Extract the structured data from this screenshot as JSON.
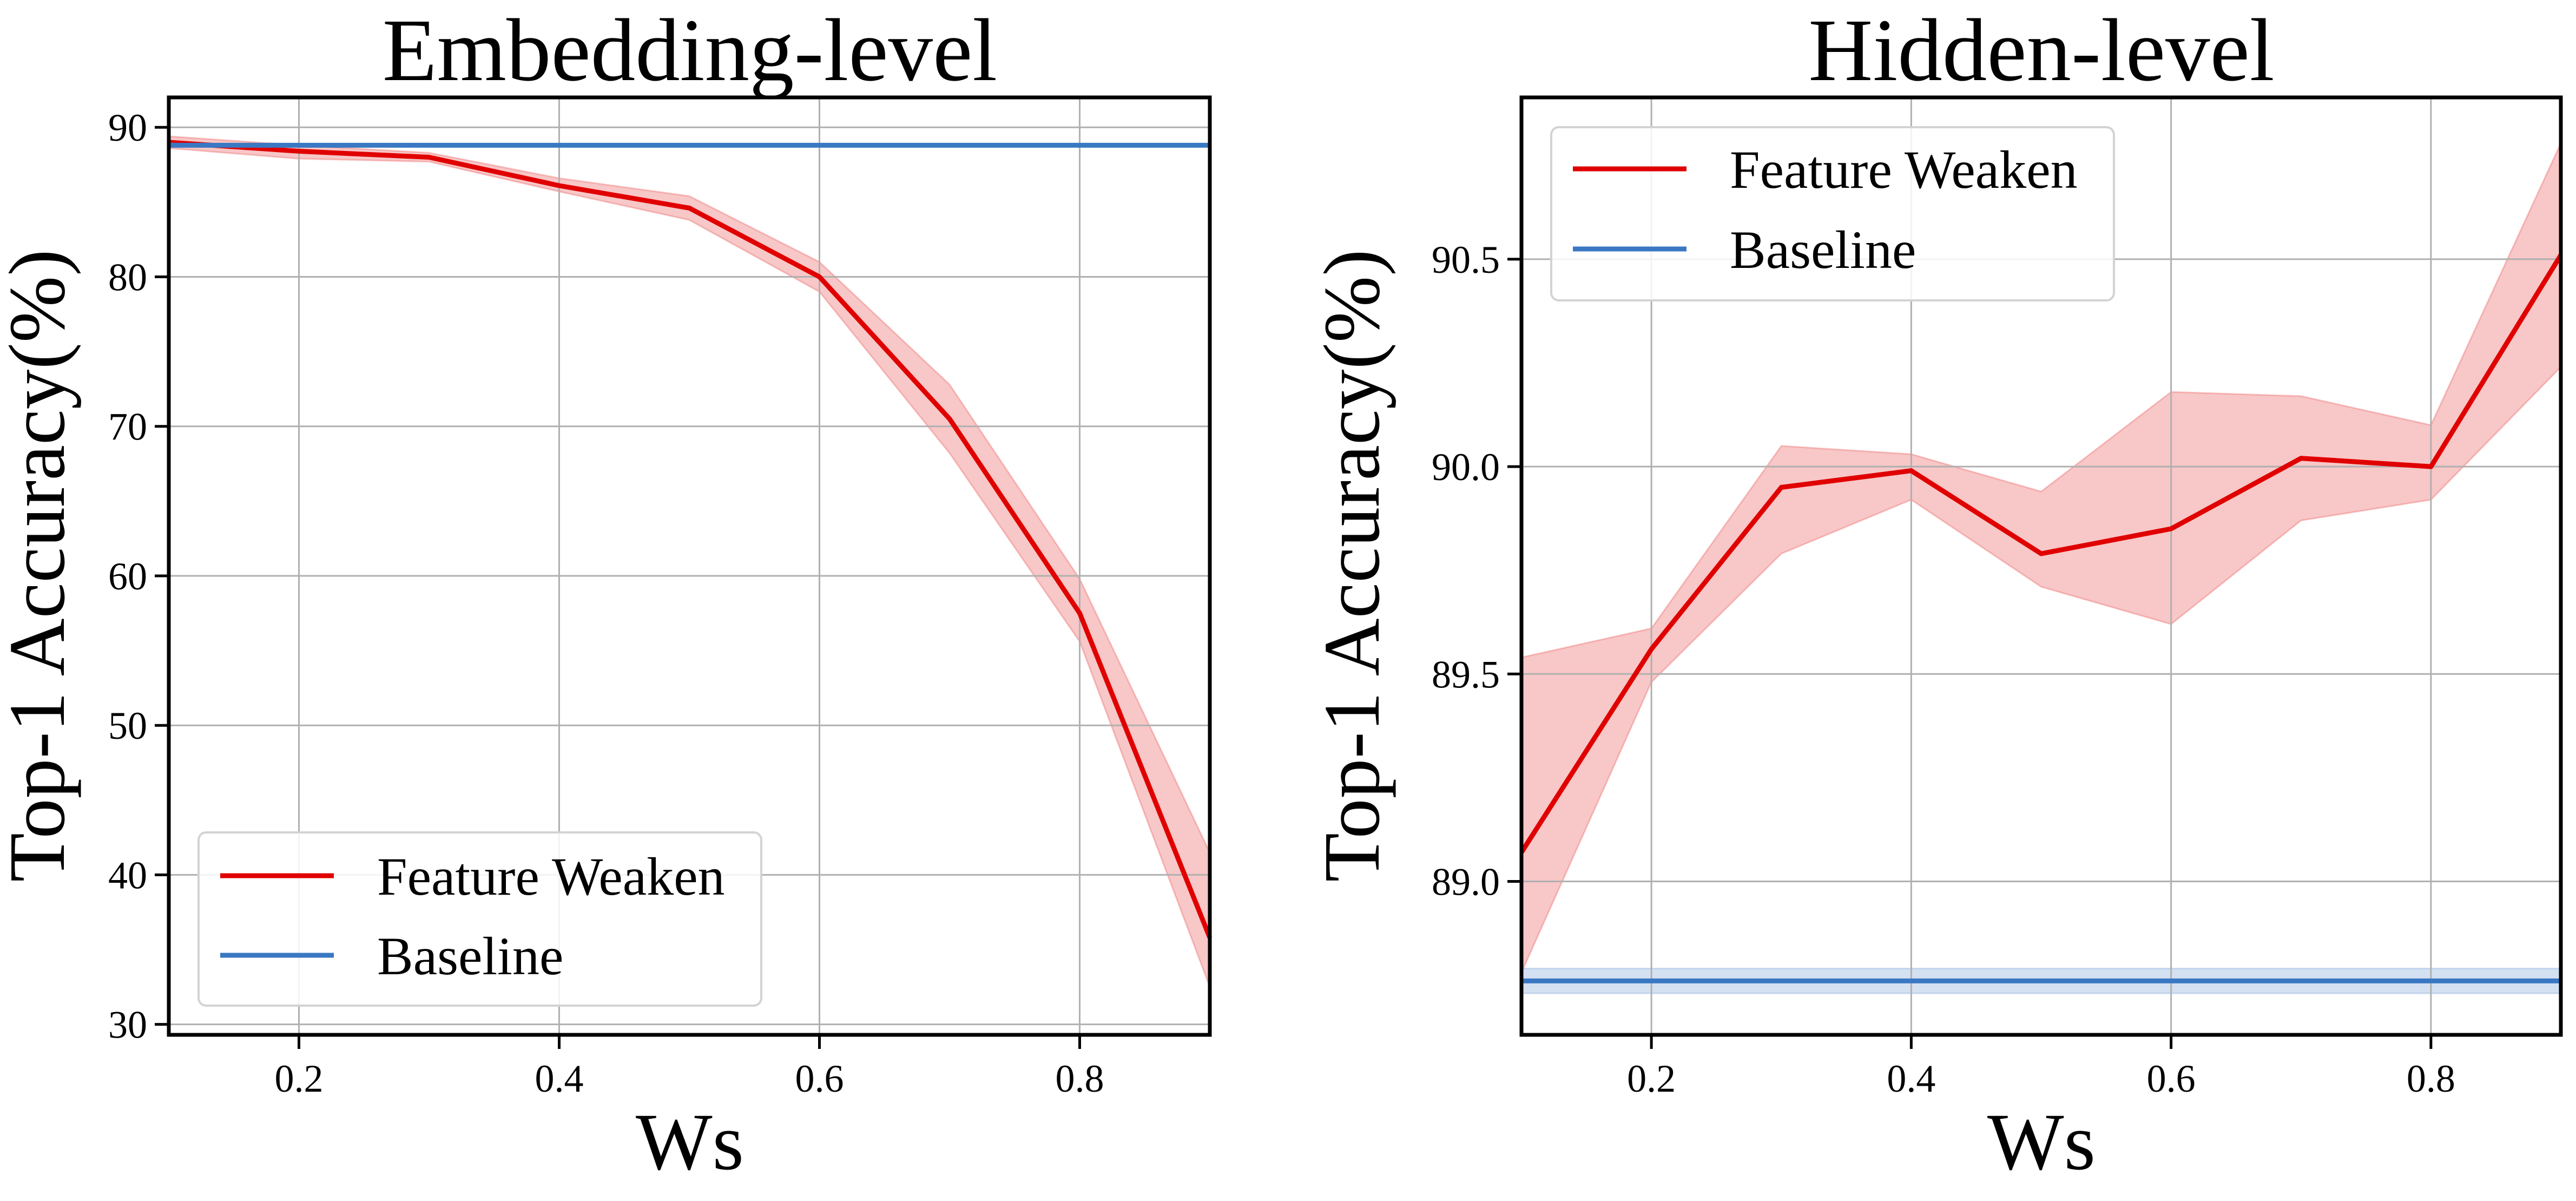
{
  "chart_data": [
    {
      "type": "line",
      "title": "Embedding-level",
      "xlabel": "Ws",
      "ylabel": "Top-1 Accuracy(%)",
      "xlim": [
        0.1,
        0.9
      ],
      "ylim": [
        29.3,
        92.0
      ],
      "xticks": [
        0.2,
        0.4,
        0.6,
        0.8
      ],
      "xtick_labels": [
        "0.2",
        "0.4",
        "0.6",
        "0.8"
      ],
      "yticks": [
        30,
        40,
        50,
        60,
        70,
        80,
        90
      ],
      "ytick_labels": [
        "30",
        "40",
        "50",
        "60",
        "70",
        "80",
        "90"
      ],
      "grid": true,
      "legend_position": "lower-left",
      "series": [
        {
          "name": "Feature Weaken",
          "color": "#e00000",
          "x": [
            0.1,
            0.2,
            0.3,
            0.4,
            0.5,
            0.6,
            0.7,
            0.8,
            0.9
          ],
          "y": [
            89.0,
            88.4,
            88.0,
            86.1,
            84.6,
            80.0,
            70.5,
            57.5,
            35.8
          ],
          "y_lower": [
            88.6,
            87.9,
            87.7,
            85.7,
            83.8,
            79.0,
            68.2,
            55.6,
            32.5
          ],
          "y_upper": [
            89.4,
            88.8,
            88.3,
            86.6,
            85.4,
            81.0,
            72.8,
            59.8,
            41.5
          ]
        },
        {
          "name": "Baseline",
          "color": "#3a78c3",
          "x": [
            0.1,
            0.9
          ],
          "y": [
            88.8,
            88.8
          ]
        }
      ]
    },
    {
      "type": "line",
      "title": "Hidden-level",
      "xlabel": "Ws",
      "ylabel": "Top-1 Accuracy(%)",
      "xlim": [
        0.1,
        0.9
      ],
      "ylim": [
        88.63,
        90.89
      ],
      "xticks": [
        0.2,
        0.4,
        0.6,
        0.8
      ],
      "xtick_labels": [
        "0.2",
        "0.4",
        "0.6",
        "0.8"
      ],
      "yticks": [
        89.0,
        89.5,
        90.0,
        90.5
      ],
      "ytick_labels": [
        "89.0",
        "89.5",
        "90.0",
        "90.5"
      ],
      "grid": true,
      "legend_position": "upper-left",
      "series": [
        {
          "name": "Feature Weaken",
          "color": "#e00000",
          "x": [
            0.1,
            0.2,
            0.3,
            0.4,
            0.5,
            0.6,
            0.7,
            0.8,
            0.9
          ],
          "y": [
            89.07,
            89.56,
            89.95,
            89.99,
            89.79,
            89.85,
            90.02,
            90.0,
            90.51
          ],
          "y_lower": [
            88.78,
            89.48,
            89.79,
            89.92,
            89.71,
            89.62,
            89.87,
            89.92,
            90.24
          ],
          "y_upper": [
            89.54,
            89.61,
            90.05,
            90.03,
            89.94,
            90.18,
            90.17,
            90.1,
            90.78
          ]
        },
        {
          "name": "Baseline",
          "color": "#3a78c3",
          "x": [
            0.1,
            0.9
          ],
          "y": [
            88.76,
            88.76
          ],
          "y_lower": [
            88.73,
            88.73
          ],
          "y_upper": [
            88.79,
            88.79
          ]
        }
      ]
    }
  ]
}
